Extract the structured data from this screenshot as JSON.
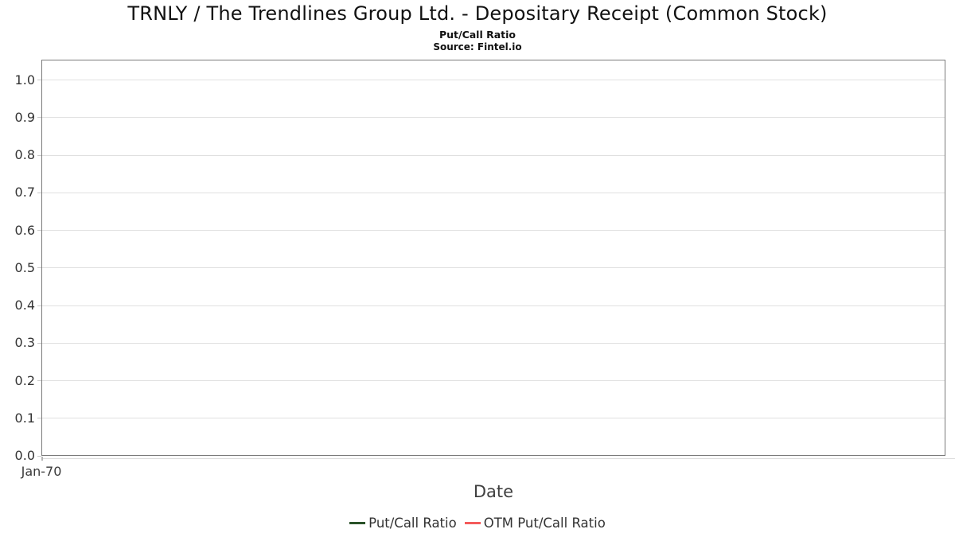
{
  "header": {
    "title": "TRNLY / The Trendlines Group Ltd. - Depositary Receipt (Common Stock)",
    "subtitle": "Put/Call Ratio",
    "source": "Source: Fintel.io"
  },
  "axes": {
    "x_label": "Date",
    "x_tick_labels": [
      "Jan-70"
    ],
    "y_tick_labels": [
      "0.0",
      "0.1",
      "0.2",
      "0.3",
      "0.4",
      "0.5",
      "0.6",
      "0.7",
      "0.8",
      "0.9",
      "1.0"
    ]
  },
  "legend": {
    "items": [
      {
        "label": "Put/Call Ratio",
        "color": "#2a5229"
      },
      {
        "label": "OTM Put/Call Ratio",
        "color": "#f45b5b"
      }
    ]
  },
  "colors": {
    "put_call_series": "#2a5229",
    "otm_put_call_series": "#f45b5b",
    "gridline": "#e0e0e0",
    "plot_border": "#7a7a7a",
    "tick_label": "#333333"
  },
  "chart_data": {
    "type": "line",
    "title": "TRNLY / The Trendlines Group Ltd. - Depositary Receipt (Common Stock)",
    "subtitle": "Put/Call Ratio",
    "source": "Source: Fintel.io",
    "xlabel": "Date",
    "ylabel": "",
    "x": [
      "Jan-70"
    ],
    "series": [
      {
        "name": "Put/Call Ratio",
        "color": "#2a5229",
        "values": []
      },
      {
        "name": "OTM Put/Call Ratio",
        "color": "#f45b5b",
        "values": []
      }
    ],
    "ylim": [
      0,
      1.055
    ],
    "yticks": [
      0,
      0.1,
      0.2,
      0.3,
      0.4,
      0.5,
      0.6,
      0.7,
      0.8,
      0.9,
      1.0
    ],
    "grid": true,
    "legend_position": "bottom",
    "plot_empty": true
  }
}
